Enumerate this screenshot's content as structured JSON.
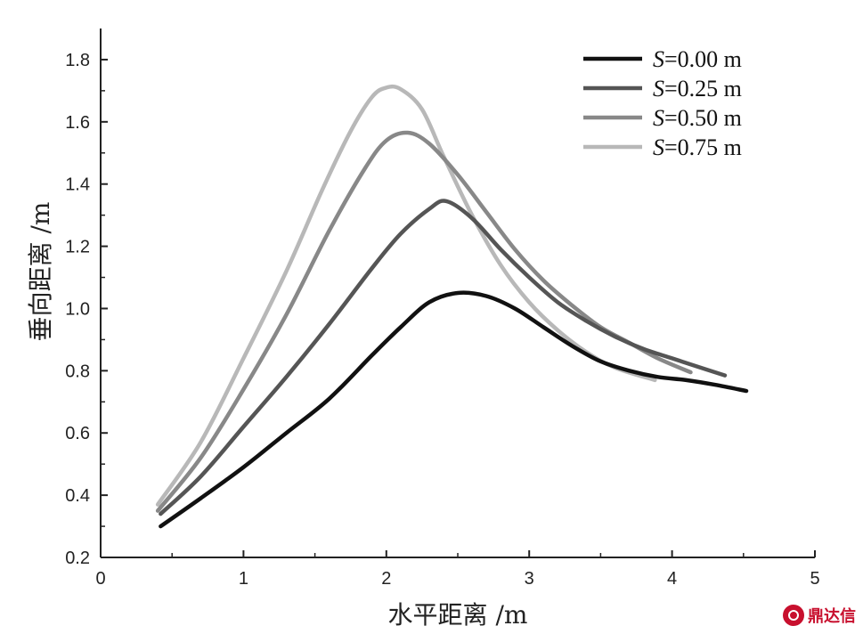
{
  "chart_data": {
    "type": "line",
    "xlabel": "水平距离 /m",
    "ylabel": "垂向距离 /m",
    "xlim": [
      0,
      5
    ],
    "ylim": [
      0.2,
      1.9
    ],
    "xticks": [
      0,
      1,
      2,
      3,
      4,
      5
    ],
    "yticks": [
      0.2,
      0.4,
      0.6,
      0.8,
      1.0,
      1.2,
      1.4,
      1.6,
      1.8
    ],
    "xtick_labels": [
      "0",
      "1",
      "2",
      "3",
      "4",
      "5"
    ],
    "ytick_labels": [
      "0.2",
      "0.4",
      "0.6",
      "0.8",
      "1.0",
      "1.2",
      "1.4",
      "1.6",
      "1.8"
    ],
    "grid": false,
    "legend_position": "top-right",
    "series": [
      {
        "name": "S=0.00 m",
        "name_var": "S",
        "name_rest": "=0.00 m",
        "color": "#111111",
        "x": [
          0.42,
          0.7,
          1.0,
          1.3,
          1.6,
          1.9,
          2.1,
          2.3,
          2.5,
          2.7,
          2.9,
          3.1,
          3.3,
          3.5,
          3.7,
          3.9,
          4.1,
          4.3,
          4.52
        ],
        "y": [
          0.3,
          0.39,
          0.49,
          0.6,
          0.71,
          0.85,
          0.94,
          1.02,
          1.05,
          1.04,
          1.0,
          0.94,
          0.88,
          0.83,
          0.8,
          0.78,
          0.77,
          0.755,
          0.735
        ]
      },
      {
        "name": "S=0.25 m",
        "name_var": "S",
        "name_rest": "=0.25 m",
        "color": "#555555",
        "x": [
          0.42,
          0.7,
          1.0,
          1.3,
          1.6,
          1.9,
          2.1,
          2.3,
          2.42,
          2.6,
          2.8,
          3.0,
          3.2,
          3.4,
          3.6,
          3.8,
          4.0,
          4.2,
          4.37
        ],
        "y": [
          0.34,
          0.46,
          0.62,
          0.78,
          0.95,
          1.13,
          1.24,
          1.32,
          1.345,
          1.29,
          1.19,
          1.1,
          1.02,
          0.96,
          0.91,
          0.87,
          0.84,
          0.81,
          0.785
        ]
      },
      {
        "name": "S=0.50 m",
        "name_var": "S",
        "name_rest": "=0.50 m",
        "color": "#888888",
        "x": [
          0.4,
          0.7,
          1.0,
          1.3,
          1.6,
          1.85,
          2.0,
          2.15,
          2.3,
          2.5,
          2.7,
          2.9,
          3.1,
          3.3,
          3.5,
          3.7,
          3.9,
          4.13
        ],
        "y": [
          0.35,
          0.52,
          0.74,
          0.98,
          1.25,
          1.45,
          1.54,
          1.565,
          1.53,
          1.43,
          1.31,
          1.19,
          1.09,
          1.01,
          0.94,
          0.89,
          0.84,
          0.795
        ]
      },
      {
        "name": "S=0.75 m",
        "name_var": "S",
        "name_rest": "=0.75 m",
        "color": "#b8b8b8",
        "x": [
          0.4,
          0.7,
          1.0,
          1.3,
          1.55,
          1.75,
          1.9,
          2.0,
          2.1,
          2.25,
          2.4,
          2.6,
          2.8,
          3.0,
          3.2,
          3.4,
          3.6,
          3.88
        ],
        "y": [
          0.37,
          0.57,
          0.84,
          1.12,
          1.38,
          1.57,
          1.68,
          1.71,
          1.705,
          1.64,
          1.49,
          1.3,
          1.14,
          1.02,
          0.93,
          0.86,
          0.81,
          0.77
        ]
      }
    ]
  },
  "watermark": {
    "text": "鼎达信"
  }
}
